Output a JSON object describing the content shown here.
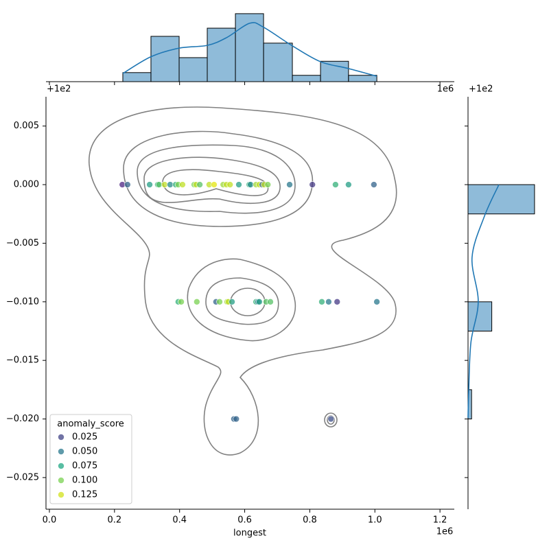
{
  "chart_data": {
    "type": "scatter",
    "x_label": "longest",
    "x_offset": "1e6",
    "y_offset": "+1e2",
    "xlim": [
      -0.0105,
      1.244
    ],
    "xticks": [
      {
        "value": 0,
        "label": "0.0"
      },
      0.2,
      0.4,
      0.6,
      0.8,
      {
        "value": 1.0,
        "label": "1.0"
      },
      1.2
    ],
    "ylim": [
      -0.0277,
      0.0075
    ],
    "yticks": [
      0.005,
      {
        "value": 0,
        "label": "0.000"
      },
      {
        "value": -0.005,
        "label": "−0.005"
      },
      {
        "value": -0.01,
        "label": "−0.010"
      },
      {
        "value": -0.015,
        "label": "−0.015"
      },
      {
        "value": -0.02,
        "label": "−0.020"
      },
      {
        "value": -0.025,
        "label": "−0.025"
      }
    ],
    "x": [
      0.224,
      0.24,
      0.308,
      0.333,
      0.337,
      0.354,
      0.371,
      0.388,
      0.396,
      0.409,
      0.445,
      0.451,
      0.462,
      0.491,
      0.506,
      0.534,
      0.544,
      0.555,
      0.582,
      0.614,
      0.618,
      0.635,
      0.645,
      0.654,
      0.66,
      0.671,
      0.738,
      0.808,
      0.879,
      0.919,
      0.997,
      0.396,
      0.405,
      0.453,
      0.512,
      0.523,
      0.546,
      0.55,
      0.561,
      0.635,
      0.641,
      0.645,
      0.666,
      0.679,
      0.837,
      0.858,
      0.884,
      1.006,
      0.567,
      0.574,
      0.865
    ],
    "values": [
      0,
      0,
      0,
      0,
      0,
      0,
      0,
      0,
      0,
      0,
      0,
      0,
      0,
      0,
      0,
      0,
      0,
      0,
      0,
      0,
      0,
      0,
      0,
      0,
      0,
      0,
      0,
      0,
      0,
      0,
      0,
      -0.01,
      -0.01,
      -0.01,
      -0.01,
      -0.01,
      -0.01,
      -0.01,
      -0.01,
      -0.01,
      -0.01,
      -0.01,
      -0.01,
      -0.01,
      -0.01,
      -0.01,
      -0.01,
      -0.01,
      -0.02,
      -0.02,
      -0.02
    ],
    "hue": [
      0.01,
      0.04,
      0.07,
      0.08,
      0.09,
      0.12,
      0.06,
      0.08,
      0.1,
      0.12,
      0.1,
      0.12,
      0.09,
      0.12,
      0.13,
      0.11,
      0.12,
      0.12,
      0.07,
      0.08,
      0.06,
      0.11,
      0.12,
      0.04,
      0.12,
      0.1,
      0.05,
      0.02,
      0.08,
      0.07,
      0.04,
      0.08,
      0.1,
      0.1,
      0.04,
      0.1,
      0.11,
      0.12,
      0.07,
      0.08,
      0.05,
      0.07,
      0.09,
      0.09,
      0.08,
      0.05,
      0.02,
      0.05,
      0.04,
      0.04,
      0.03
    ],
    "legend": {
      "title": "anomaly_score",
      "position": "lower left",
      "levels": [
        {
          "value": 0.025,
          "label": "0.025",
          "color": "#414487"
        },
        {
          "value": 0.05,
          "label": "0.050",
          "color": "#2a788e"
        },
        {
          "value": 0.075,
          "label": "0.075",
          "color": "#22a884"
        },
        {
          "value": 0.1,
          "label": "0.100",
          "color": "#7ad151"
        },
        {
          "value": 0.125,
          "label": "0.125",
          "color": "#d2e21b"
        }
      ]
    },
    "marginal_x": {
      "type": "histogram",
      "color": "#1f77b4",
      "x_offset": "1e6",
      "bins": [
        0.2256,
        0.312,
        0.3986,
        0.485,
        0.5715,
        0.658,
        0.7465,
        0.833,
        0.919,
        1.006
      ],
      "values": [
        2,
        10,
        5.3,
        11.8,
        15,
        8.5,
        1.4,
        4.5,
        1.4
      ],
      "ylim": [
        0,
        16.5
      ],
      "kde": {
        "x": [
          0.2256,
          0.312,
          0.3986,
          0.485,
          0.544,
          0.616,
          0.658,
          0.7465,
          0.833,
          0.919,
          1.006
        ],
        "values": [
          1.8,
          5.5,
          7.4,
          8.0,
          9.7,
          12.9,
          12.0,
          7.9,
          4.4,
          2.9,
          1.2
        ]
      }
    },
    "marginal_y": {
      "type": "histogram",
      "color": "#1f77b4",
      "y_offset": "+1e2",
      "bins": [
        -0.02,
        -0.0175,
        -0.015,
        -0.0125,
        -0.01,
        -0.0075,
        -0.005,
        -0.0025,
        0
      ],
      "values": [
        1.5,
        0,
        0,
        10,
        0,
        0,
        0,
        28
      ],
      "xlim": [
        0,
        31.2
      ],
      "kde": {
        "y": [
          0,
          -0.0027,
          -0.0062,
          -0.01,
          -0.0135,
          -0.0176,
          -0.0199
        ],
        "values": [
          13.0,
          6.9,
          1.7,
          4.3,
          1.2,
          0.3,
          0.0
        ]
      }
    }
  }
}
